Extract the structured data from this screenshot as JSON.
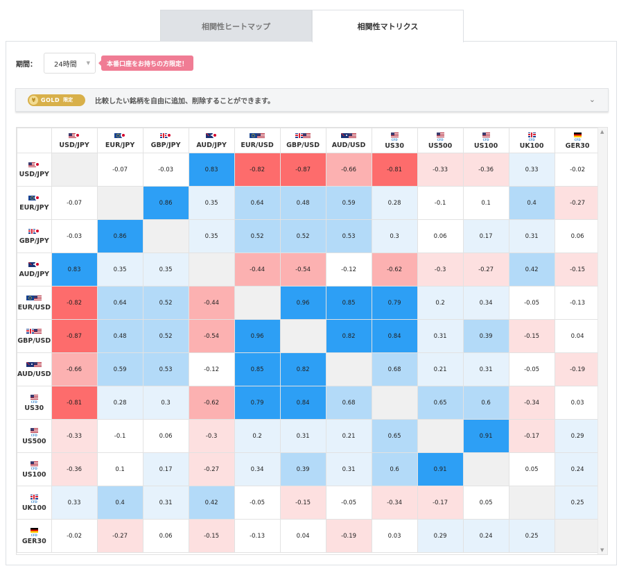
{
  "tabs": [
    {
      "label": "相関性ヒートマップ",
      "active": false
    },
    {
      "label": "相関性マトリクス",
      "active": true
    }
  ],
  "period": {
    "label": "期間：",
    "value": "24時間"
  },
  "promo_badge": "本番口座をお持ちの方限定！",
  "gold_bar": {
    "badge": "GOLD",
    "badge_sub": "限定",
    "message": "比較したい銘柄を自由に追加、削除することができます。"
  },
  "instruments": [
    {
      "label": "USD/JPY",
      "flags": [
        "us",
        "jp"
      ],
      "cfd": false
    },
    {
      "label": "EUR/JPY",
      "flags": [
        "eu",
        "jp"
      ],
      "cfd": false
    },
    {
      "label": "GBP/JPY",
      "flags": [
        "gb",
        "jp"
      ],
      "cfd": false
    },
    {
      "label": "AUD/JPY",
      "flags": [
        "au",
        "jp"
      ],
      "cfd": false
    },
    {
      "label": "EUR/USD",
      "flags": [
        "eu",
        "us"
      ],
      "cfd": false
    },
    {
      "label": "GBP/USD",
      "flags": [
        "gb",
        "us"
      ],
      "cfd": false
    },
    {
      "label": "AUD/USD",
      "flags": [
        "au",
        "us"
      ],
      "cfd": false
    },
    {
      "label": "US30",
      "flags": [
        "us"
      ],
      "cfd": true
    },
    {
      "label": "US500",
      "flags": [
        "us"
      ],
      "cfd": true
    },
    {
      "label": "US100",
      "flags": [
        "us"
      ],
      "cfd": true
    },
    {
      "label": "UK100",
      "flags": [
        "gb"
      ],
      "cfd": true
    },
    {
      "label": "GER30",
      "flags": [
        "de"
      ],
      "cfd": true
    }
  ],
  "cfd_tag": "CFD",
  "matrix": [
    [
      null,
      "-0.07",
      "-0.03",
      "0.83",
      "-0.82",
      "-0.87",
      "-0.66",
      "-0.81",
      "-0.33",
      "-0.36",
      "0.33",
      "-0.02"
    ],
    [
      "-0.07",
      null,
      "0.86",
      "0.35",
      "0.64",
      "0.48",
      "0.59",
      "0.28",
      "-0.1",
      "0.1",
      "0.4",
      "-0.27"
    ],
    [
      "-0.03",
      "0.86",
      null,
      "0.35",
      "0.52",
      "0.52",
      "0.53",
      "0.3",
      "0.06",
      "0.17",
      "0.31",
      "0.06"
    ],
    [
      "0.83",
      "0.35",
      "0.35",
      null,
      "-0.44",
      "-0.54",
      "-0.12",
      "-0.62",
      "-0.3",
      "-0.27",
      "0.42",
      "-0.15"
    ],
    [
      "-0.82",
      "0.64",
      "0.52",
      "-0.44",
      null,
      "0.96",
      "0.85",
      "0.79",
      "0.2",
      "0.34",
      "-0.05",
      "-0.13"
    ],
    [
      "-0.87",
      "0.48",
      "0.52",
      "-0.54",
      "0.96",
      null,
      "0.82",
      "0.84",
      "0.31",
      "0.39",
      "-0.15",
      "0.04"
    ],
    [
      "-0.66",
      "0.59",
      "0.53",
      "-0.12",
      "0.85",
      "0.82",
      null,
      "0.68",
      "0.21",
      "0.31",
      "-0.05",
      "-0.19"
    ],
    [
      "-0.81",
      "0.28",
      "0.3",
      "-0.62",
      "0.79",
      "0.84",
      "0.68",
      null,
      "0.65",
      "0.6",
      "-0.34",
      "0.03"
    ],
    [
      "-0.33",
      "-0.1",
      "0.06",
      "-0.3",
      "0.2",
      "0.31",
      "0.21",
      "0.65",
      null,
      "0.91",
      "-0.17",
      "0.29"
    ],
    [
      "-0.36",
      "0.1",
      "0.17",
      "-0.27",
      "0.34",
      "0.39",
      "0.31",
      "0.6",
      "0.91",
      null,
      "0.05",
      "0.24"
    ],
    [
      "0.33",
      "0.4",
      "0.31",
      "0.42",
      "-0.05",
      "-0.15",
      "-0.05",
      "-0.34",
      "-0.17",
      "0.05",
      null,
      "0.25"
    ],
    [
      "-0.02",
      "-0.27",
      "0.06",
      "-0.15",
      "-0.13",
      "0.04",
      "-0.19",
      "0.03",
      "0.29",
      "0.24",
      "0.25",
      null
    ]
  ],
  "colors": {
    "strong_positive": "#2d9ff5",
    "medium_positive": "#b3daf8",
    "weak_positive": "#e6f2fc",
    "neutral": "#ffffff",
    "weak_negative": "#fde0e0",
    "medium_negative": "#fcb1b1",
    "strong_negative": "#fd6c6c",
    "diagonal": "#f0f0f0"
  }
}
